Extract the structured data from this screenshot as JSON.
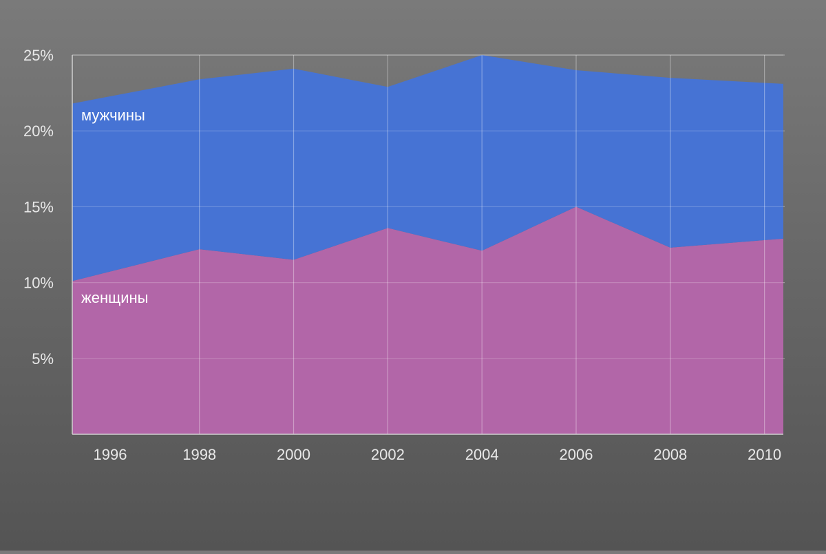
{
  "chart_data": {
    "type": "area",
    "stacked": true,
    "title": "",
    "xlabel": "",
    "ylabel": "",
    "x": [
      1995.3,
      1998,
      2000,
      2002,
      2004,
      2006,
      2008,
      2010.4
    ],
    "x_ticks": [
      "1996",
      "1998",
      "2000",
      "2002",
      "2004",
      "2006",
      "2008",
      "2010"
    ],
    "x_tick_values": [
      1996,
      1998,
      2000,
      2002,
      2004,
      2006,
      2008,
      2010
    ],
    "y_ticks": [
      "5%",
      "10%",
      "15%",
      "20%",
      "25%"
    ],
    "y_tick_values": [
      5,
      10,
      15,
      20,
      25
    ],
    "ylim": [
      0,
      25
    ],
    "xlim": [
      1995.3,
      2010.4
    ],
    "grid": true,
    "legend": "inline labels",
    "series": [
      {
        "name": "женщины",
        "values": [
          10.1,
          12.2,
          11.5,
          13.6,
          12.1,
          15.0,
          12.3,
          12.9
        ],
        "color": "#b266a8"
      },
      {
        "name": "мужчины",
        "values": [
          11.7,
          11.2,
          12.6,
          9.3,
          12.9,
          9.0,
          11.2,
          10.2
        ],
        "color": "#4673d4"
      }
    ],
    "totals": [
      21.8,
      23.4,
      24.1,
      22.9,
      25.0,
      24.0,
      23.5,
      23.1
    ]
  },
  "colors": {
    "background_top": "#7a7a7a",
    "background_bottom": "#545454",
    "grid": "#c9c9c9",
    "axis": "#d0d0d0",
    "text": "#e8e8e8"
  }
}
